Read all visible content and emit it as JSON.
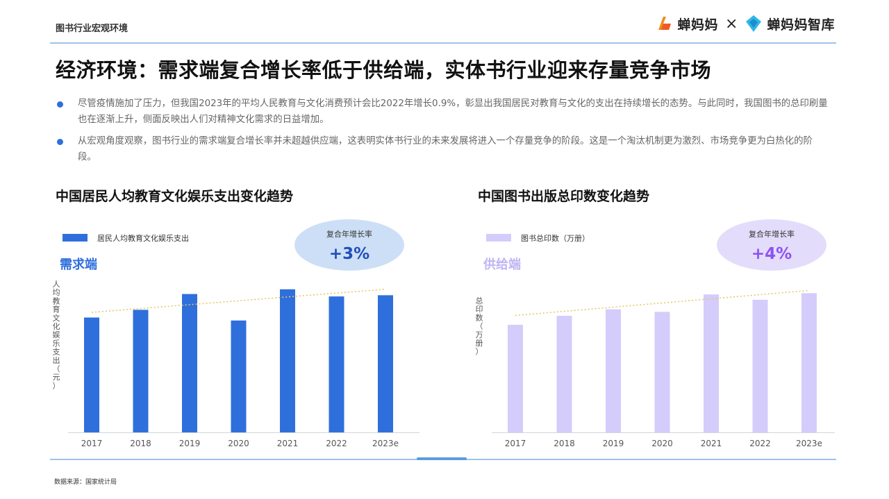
{
  "header": {
    "section_label": "图书行业宏观环境",
    "logo_left_text": "蝉妈妈",
    "logo_separator": "×",
    "logo_right_text": "蝉妈妈智库"
  },
  "headline": "经济环境：需求端复合增长率低于供给端，实体书行业迎来存量竞争市场",
  "bullets": [
    "尽管疫情施加了压力，但我国2023年的平均人民教育与文化消费预计会比2022年增长0.9%，彰显出我国居民对教育与文化的支出在持续增长的态势。与此同时，我国图书的总印刷量也在逐渐上升，侧面反映出人们对精神文化需求的日益增加。",
    "从宏观角度观察，图书行业的需求端复合增长率并未超越供应端，这表明实体书行业的未来发展将进入一个存量竞争的阶段。这是一个淘汰机制更为激烈、市场竞争更为白热化的阶段。"
  ],
  "footer": {
    "source": "数据来源：国家统计局"
  },
  "colors": {
    "demand_bar": "#2f6fdc",
    "supply_bar": "#d4ccfb",
    "demand_badge_bg": "#cddff6",
    "supply_badge_bg": "#e4dcfb",
    "demand_accent": "#1f4fb8",
    "supply_accent": "#8c52f2",
    "trend_line": "#e4c866",
    "rule": "#9cc3ea"
  },
  "chart_data": [
    {
      "type": "bar",
      "title": "中国居民人均教育文化娱乐支出变化趋势",
      "tag": "需求端",
      "badge_label": "复合年增长率",
      "badge_value": "+3%",
      "xlabel": "",
      "ylabel": "人均教育文化娱乐支出（元）",
      "categories": [
        "2017",
        "2018",
        "2019",
        "2020",
        "2021",
        "2022",
        "2023e"
      ],
      "series": [
        {
          "name": "居民人均教育文化娱乐支出",
          "values": [
            2086,
            2226,
            2513,
            2032,
            2599,
            2469,
            2491
          ]
        }
      ],
      "ylim": [
        0,
        3000
      ],
      "trend": [
        2180,
        2600
      ],
      "grid": false,
      "legend": "top-left"
    },
    {
      "type": "bar",
      "title": "中国图书出版总印数变化趋势",
      "tag": "供给端",
      "badge_label": "复合年增长率",
      "badge_value": "+4%",
      "xlabel": "",
      "ylabel": "总印数（万册）",
      "categories": [
        "2017",
        "2018",
        "2019",
        "2020",
        "2021",
        "2022",
        "2023e"
      ],
      "series": [
        {
          "name": "图书总印数（万册）",
          "values": [
            925,
            1002,
            1058,
            1036,
            1186,
            1140,
            1197
          ]
        }
      ],
      "ylim": [
        0,
        1420
      ],
      "trend": [
        1005,
        1220
      ],
      "grid": false,
      "legend": "top-left"
    }
  ]
}
